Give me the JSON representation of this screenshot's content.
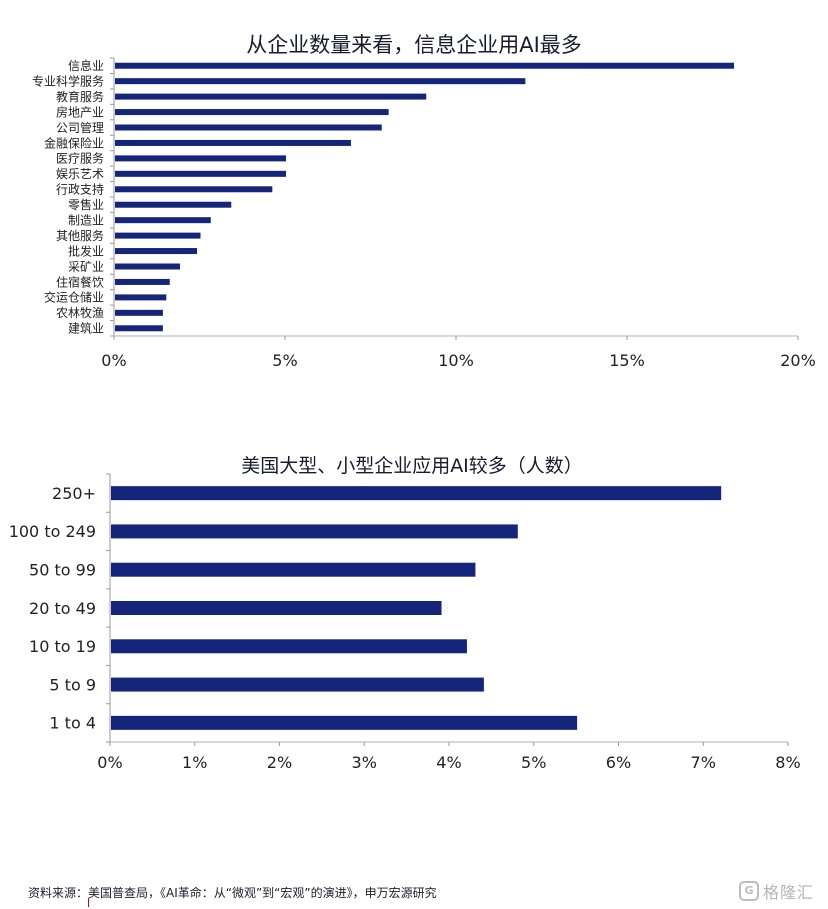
{
  "chart_data": [
    {
      "type": "bar",
      "orientation": "horizontal",
      "title": "从企业数量来看，信息企业用AI最多",
      "categories": [
        "信息业",
        "专业科学服务",
        "教育服务",
        "房地产业",
        "公司管理",
        "金融保险业",
        "医疗服务",
        "娱乐艺术",
        "行政支持",
        "零售业",
        "制造业",
        "其他服务",
        "批发业",
        "采矿业",
        "住宿餐饮",
        "交运仓储业",
        "农林牧渔",
        "建筑业"
      ],
      "values": [
        18.1,
        12.0,
        9.1,
        8.0,
        7.8,
        6.9,
        5.0,
        5.0,
        4.6,
        3.4,
        2.8,
        2.5,
        2.4,
        1.9,
        1.6,
        1.5,
        1.4,
        1.4
      ],
      "xticks": [
        "0%",
        "5%",
        "10%",
        "15%",
        "20%"
      ],
      "xlim": [
        0,
        20
      ],
      "unit": "%",
      "color": "#15267a"
    },
    {
      "type": "bar",
      "orientation": "horizontal",
      "title": "美国大型、小型企业应用AI较多（人数）",
      "categories": [
        "250+",
        "100 to 249",
        "50 to 99",
        "20 to 49",
        "10 to 19",
        "5 to 9",
        "1 to 4"
      ],
      "values": [
        7.2,
        4.8,
        4.3,
        3.9,
        4.2,
        4.4,
        5.5
      ],
      "xticks": [
        "0%",
        "1%",
        "2%",
        "3%",
        "4%",
        "5%",
        "6%",
        "7%",
        "8%"
      ],
      "xlim": [
        0,
        8
      ],
      "unit": "%",
      "color": "#15267a"
    }
  ],
  "source_note": "资料来源：美国普查局，《AI革命：从“微观”到“宏观”的演进》，申万宏源研究",
  "watermark": {
    "icon": "G",
    "text": "格隆汇"
  }
}
